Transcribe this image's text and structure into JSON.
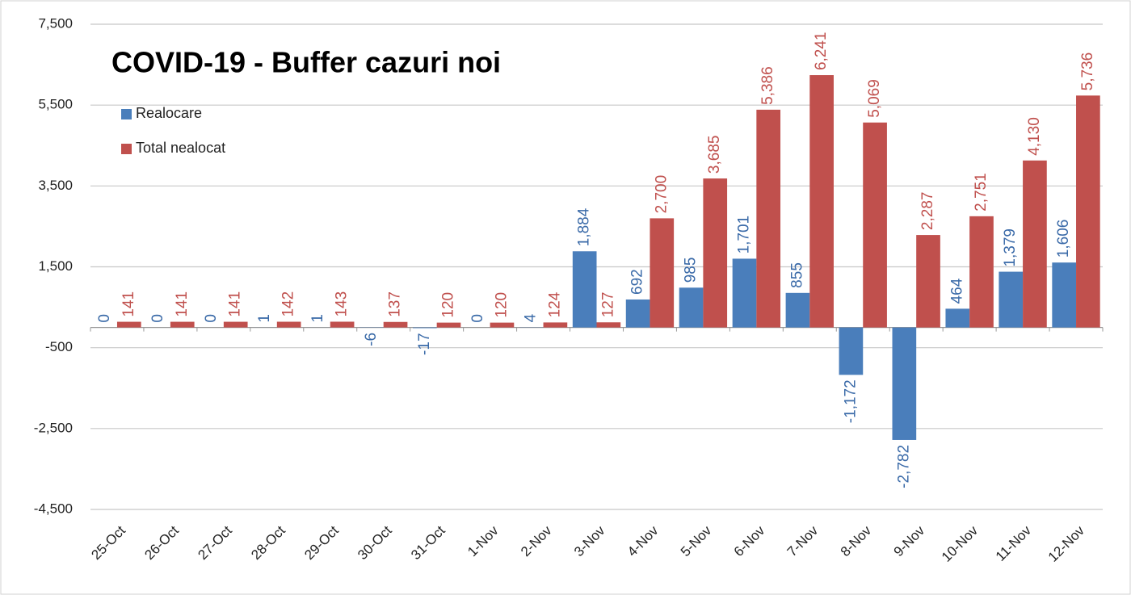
{
  "chart_data": {
    "type": "bar",
    "title": "COVID-19 - Buffer cazuri noi",
    "categories": [
      "25-Oct",
      "26-Oct",
      "27-Oct",
      "28-Oct",
      "29-Oct",
      "30-Oct",
      "31-Oct",
      "1-Nov",
      "2-Nov",
      "3-Nov",
      "4-Nov",
      "5-Nov",
      "6-Nov",
      "7-Nov",
      "8-Nov",
      "9-Nov",
      "10-Nov",
      "11-Nov",
      "12-Nov"
    ],
    "series": [
      {
        "name": "Realocare",
        "color": "#4a7ebb",
        "values": [
          0,
          0,
          0,
          1,
          1,
          -6,
          -17,
          0,
          4,
          1884,
          692,
          985,
          1701,
          855,
          -1172,
          -2782,
          464,
          1379,
          1606
        ],
        "value_labels": [
          "0",
          "0",
          "0",
          "1",
          "1",
          "-6",
          "-17",
          "0",
          "4",
          "1,884",
          "692",
          "985",
          "1,701",
          "855",
          "-1,172",
          "-2,782",
          "464",
          "1,379",
          "1,606"
        ]
      },
      {
        "name": "Total nealocat",
        "color": "#c0504d",
        "values": [
          141,
          141,
          141,
          142,
          143,
          137,
          120,
          120,
          124,
          127,
          2700,
          3685,
          5386,
          6241,
          5069,
          2287,
          2751,
          4130,
          5736
        ],
        "value_labels": [
          "141",
          "141",
          "141",
          "142",
          "143",
          "137",
          "120",
          "120",
          "124",
          "127",
          "2,700",
          "3,685",
          "5,386",
          "6,241",
          "5,069",
          "2,287",
          "2,751",
          "4,130",
          "5,736"
        ]
      }
    ],
    "ylim": [
      -4500,
      7500
    ],
    "yticks": [
      {
        "value": 7500,
        "label": "7,500"
      },
      {
        "value": 5500,
        "label": "5,500"
      },
      {
        "value": 3500,
        "label": "3,500"
      },
      {
        "value": 1500,
        "label": "1,500"
      },
      -500,
      {
        "value": -2500,
        "label": "-2,500"
      },
      {
        "value": -4500,
        "label": "-4,500"
      }
    ],
    "grid": true,
    "legend": "upper-left"
  }
}
